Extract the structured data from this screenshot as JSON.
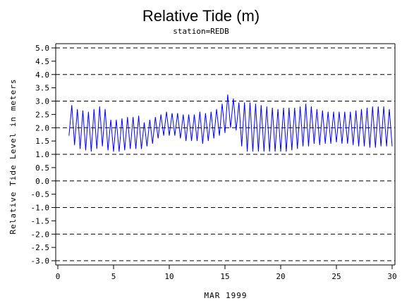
{
  "chart_data": {
    "type": "line",
    "title": "Relative Tide (m)",
    "subtitle": "station=REDB",
    "xlabel": "MAR 1999",
    "ylabel": "Relative Tide Level in meters",
    "xlim": [
      0,
      30
    ],
    "ylim": [
      -3.0,
      5.0
    ],
    "x_ticks": [
      0,
      5,
      10,
      15,
      20,
      25,
      30
    ],
    "y_ticks": [
      "5.0",
      "4.5",
      "4.0",
      "3.5",
      "3.0",
      "2.5",
      "2.0",
      "1.5",
      "1.0",
      "0.5",
      "0.0",
      "-0.5",
      "-1.0",
      "-1.5",
      "-2.0",
      "-2.5",
      "-3.0"
    ],
    "grid_y": [
      5.0,
      4.0,
      3.0,
      2.0,
      1.0,
      0.0,
      -1.0,
      -2.0,
      -3.0
    ],
    "grid": "horizontal dashed at whole meters",
    "series_color": "#0000ff",
    "series": [
      {
        "x": [
          1.0,
          1.25,
          1.5,
          1.75,
          2.0,
          2.25,
          2.5,
          2.75,
          3.0,
          3.25,
          3.5,
          3.75,
          4.0,
          4.25,
          4.5,
          4.75,
          5.0,
          5.25,
          5.5,
          5.75,
          6.0,
          6.25,
          6.5,
          6.75,
          7.0,
          7.25,
          7.5,
          7.75,
          8.0,
          8.25,
          8.5,
          8.75,
          9.0,
          9.25,
          9.5,
          9.75,
          10.0,
          10.25,
          10.5,
          10.75,
          11.0,
          11.25,
          11.5,
          11.75,
          12.0,
          12.25,
          12.5,
          12.75,
          13.0,
          13.25,
          13.5,
          13.75,
          14.0,
          14.25,
          14.5,
          14.75,
          15.0,
          15.25,
          15.5,
          15.75,
          16.0,
          16.25,
          16.5,
          16.75,
          17.0,
          17.25,
          17.5,
          17.75,
          18.0,
          18.25,
          18.5,
          18.75,
          19.0,
          19.25,
          19.5,
          19.75,
          20.0,
          20.25,
          20.5,
          20.75,
          21.0,
          21.25,
          21.5,
          21.75,
          22.0,
          22.25,
          22.5,
          22.75,
          23.0,
          23.25,
          23.5,
          23.75,
          24.0,
          24.25,
          24.5,
          24.75,
          25.0,
          25.25,
          25.5,
          25.75,
          26.0,
          26.25,
          26.5,
          26.75,
          27.0,
          27.25,
          27.5,
          27.75,
          28.0,
          28.25,
          28.5,
          28.75,
          29.0,
          29.25,
          29.5,
          29.75,
          30.0
        ],
        "y": [
          1.7,
          2.85,
          1.35,
          2.7,
          1.2,
          2.65,
          1.15,
          2.6,
          1.1,
          2.7,
          1.2,
          2.8,
          1.3,
          2.7,
          1.15,
          2.3,
          1.1,
          2.3,
          1.1,
          2.35,
          1.15,
          2.4,
          1.2,
          2.4,
          1.2,
          2.45,
          1.2,
          2.2,
          1.3,
          2.3,
          1.4,
          2.4,
          1.6,
          2.5,
          1.7,
          2.6,
          1.7,
          2.55,
          1.7,
          2.55,
          1.6,
          2.5,
          1.5,
          2.5,
          1.5,
          2.5,
          1.5,
          2.6,
          1.4,
          2.55,
          1.5,
          2.6,
          1.6,
          2.7,
          1.7,
          2.9,
          1.8,
          3.25,
          2.0,
          3.1,
          1.9,
          2.95,
          1.3,
          2.95,
          1.1,
          2.95,
          1.1,
          2.9,
          1.1,
          2.85,
          1.1,
          2.8,
          1.1,
          2.75,
          1.1,
          2.7,
          1.1,
          2.75,
          1.1,
          2.75,
          1.15,
          2.75,
          1.2,
          2.8,
          1.3,
          2.9,
          1.3,
          2.8,
          1.4,
          2.7,
          1.35,
          2.65,
          1.4,
          2.6,
          1.4,
          2.6,
          1.45,
          2.6,
          1.4,
          2.6,
          1.4,
          2.6,
          1.35,
          2.65,
          1.3,
          2.7,
          1.3,
          2.75,
          1.25,
          2.8,
          1.25,
          2.8,
          1.3,
          2.8,
          1.3,
          2.7,
          1.3
        ]
      }
    ]
  }
}
